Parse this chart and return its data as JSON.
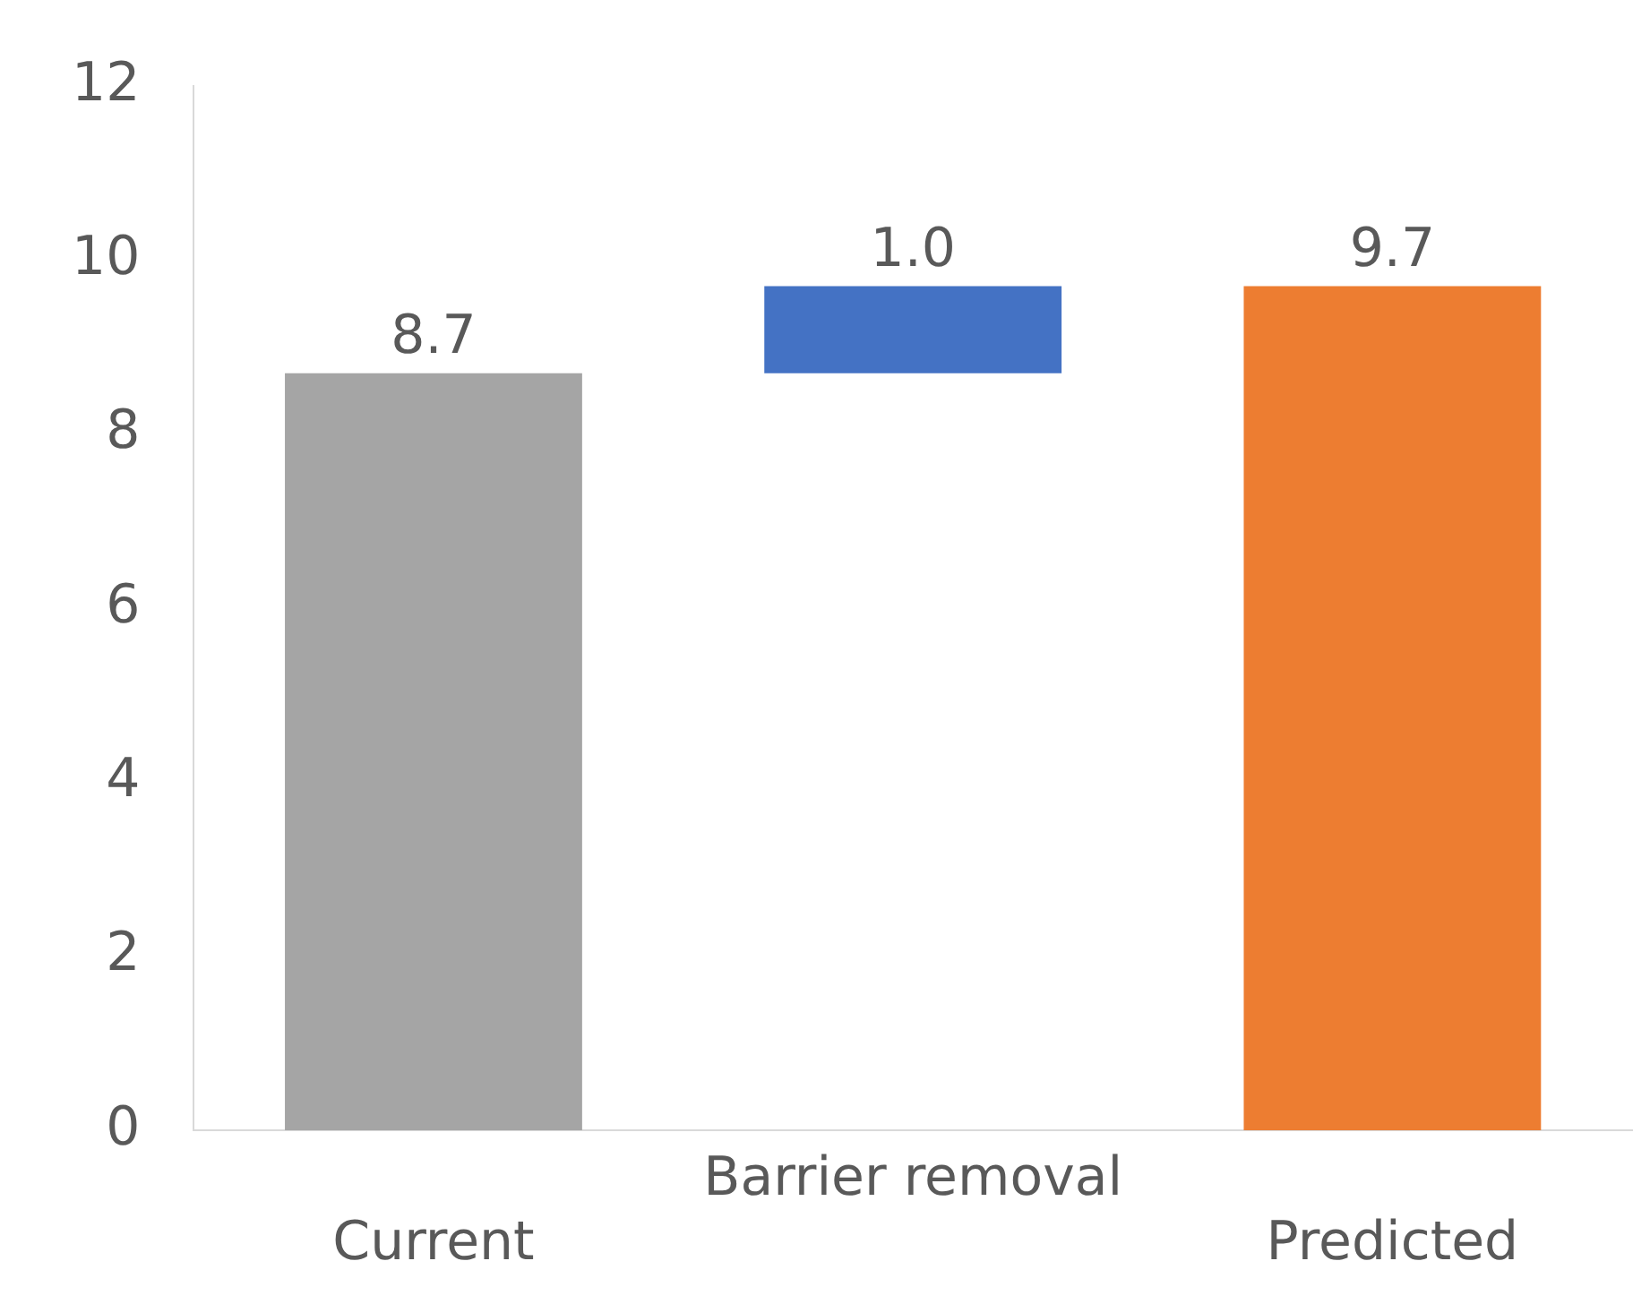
{
  "chart_data": {
    "type": "bar",
    "categories": [
      "Current",
      "Barrier removal",
      "Predicted"
    ],
    "values": [
      8.7,
      1.0,
      9.7
    ],
    "base": [
      0,
      8.7,
      0
    ],
    "colors": [
      "#a5a5a5",
      "#4472c4",
      "#ed7d31"
    ],
    "value_labels": [
      "8.7",
      "1.0",
      "9.7"
    ],
    "ylim": [
      0,
      12
    ],
    "yticks": [
      0,
      2,
      4,
      6,
      8,
      10,
      12
    ],
    "grid": false
  }
}
